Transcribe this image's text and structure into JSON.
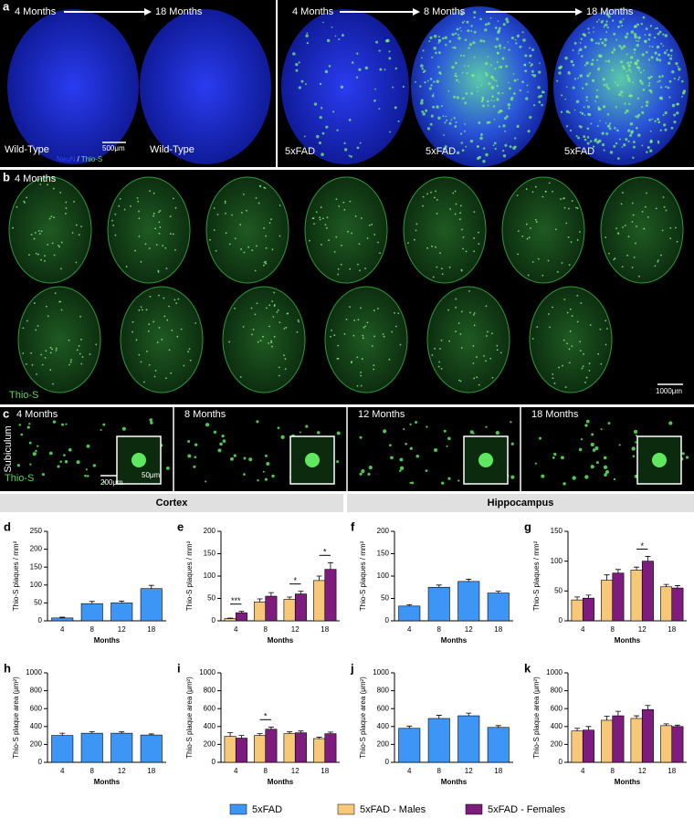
{
  "panels": {
    "a": {
      "label": "a",
      "wt_start": "4 Months",
      "wt_end": "18 Months",
      "wt_left": "Wild-Type",
      "wt_right": "Wild-Type",
      "scale": "500μm",
      "stain1": "NeuN",
      "sep": "/",
      "stain2": "Thio-S",
      "fad_1": "4 Months",
      "fad_2": "8 Months",
      "fad_3": "18 Months",
      "fad_label_1": "5xFAD",
      "fad_label_2": "5xFAD",
      "fad_label_3": "5xFAD"
    },
    "b": {
      "label": "b",
      "age": "4 Months",
      "stain": "Thio-S",
      "scale": "1000μm"
    },
    "c": {
      "label": "c",
      "ages": [
        "4 Months",
        "8 Months",
        "12 Months",
        "18 Months"
      ],
      "region": "Subiculum",
      "stain": "Thio-S",
      "scale": "200μm",
      "inset_scale": "50μm"
    }
  },
  "sections": [
    "Cortex",
    "Hippocampus"
  ],
  "chart_data": [
    {
      "type": "bar",
      "label": "d",
      "ylabel": "Thio-S plaques / mm²",
      "xlabel": "Months",
      "categories": [
        "4",
        "8",
        "12",
        "18"
      ],
      "series": [
        {
          "name": "5xFAD",
          "color": "#3d96f5",
          "values": [
            8,
            48,
            50,
            90
          ],
          "errors": [
            2,
            6,
            5,
            9
          ]
        }
      ],
      "ylim": [
        0,
        250
      ],
      "yticks": [
        0,
        50,
        100,
        150,
        200,
        250
      ],
      "annotations": []
    },
    {
      "type": "bar",
      "label": "e",
      "ylabel": "Thio-S plaques / mm²",
      "xlabel": "Months",
      "categories": [
        "4",
        "8",
        "12",
        "18"
      ],
      "series": [
        {
          "name": "5xFAD - Males",
          "color": "#f7c878",
          "values": [
            5,
            42,
            48,
            90
          ],
          "errors": [
            1,
            7,
            5,
            10
          ]
        },
        {
          "name": "5xFAD - Females",
          "color": "#7d1b7e",
          "values": [
            18,
            55,
            60,
            115
          ],
          "errors": [
            3,
            8,
            6,
            15
          ]
        }
      ],
      "ylim": [
        0,
        200
      ],
      "yticks": [
        0,
        50,
        100,
        150,
        200
      ],
      "annotations": [
        {
          "text": "***",
          "at": "4"
        },
        {
          "text": "*",
          "at": "12"
        },
        {
          "text": "*",
          "at": "18"
        }
      ]
    },
    {
      "type": "bar",
      "label": "f",
      "ylabel": "Thio-S plaques / mm²",
      "xlabel": "Months",
      "categories": [
        "4",
        "8",
        "12",
        "18"
      ],
      "series": [
        {
          "name": "5xFAD",
          "color": "#3d96f5",
          "values": [
            33,
            75,
            88,
            62
          ],
          "errors": [
            3,
            5,
            5,
            4
          ]
        }
      ],
      "ylim": [
        0,
        200
      ],
      "yticks": [
        0,
        50,
        100,
        150,
        200
      ],
      "annotations": []
    },
    {
      "type": "bar",
      "label": "g",
      "ylabel": "Thio-S plaques / mm²",
      "xlabel": "Months",
      "categories": [
        "4",
        "8",
        "12",
        "18"
      ],
      "series": [
        {
          "name": "5xFAD - Males",
          "color": "#f7c878",
          "values": [
            35,
            68,
            85,
            57
          ],
          "errors": [
            5,
            9,
            5,
            4
          ]
        },
        {
          "name": "5xFAD - Females",
          "color": "#7d1b7e",
          "values": [
            38,
            80,
            100,
            55
          ],
          "errors": [
            5,
            6,
            8,
            4
          ]
        }
      ],
      "ylim": [
        0,
        150
      ],
      "yticks": [
        0,
        50,
        100,
        150
      ],
      "annotations": [
        {
          "text": "*",
          "at": "12"
        }
      ]
    },
    {
      "type": "bar",
      "label": "h",
      "ylabel": "Thio-S plaque area (μm²)",
      "xlabel": "Months",
      "categories": [
        "4",
        "8",
        "12",
        "18"
      ],
      "series": [
        {
          "name": "5xFAD",
          "color": "#3d96f5",
          "values": [
            300,
            325,
            325,
            305
          ],
          "errors": [
            25,
            18,
            15,
            12
          ]
        }
      ],
      "ylim": [
        0,
        1000
      ],
      "yticks": [
        0,
        200,
        400,
        600,
        800,
        1000
      ],
      "annotations": []
    },
    {
      "type": "bar",
      "label": "i",
      "ylabel": "Thio-S plaque area (μm²)",
      "xlabel": "Months",
      "categories": [
        "4",
        "8",
        "12",
        "18"
      ],
      "series": [
        {
          "name": "5xFAD - Males",
          "color": "#f7c878",
          "values": [
            290,
            300,
            320,
            265
          ],
          "errors": [
            40,
            20,
            20,
            15
          ]
        },
        {
          "name": "5xFAD - Females",
          "color": "#7d1b7e",
          "values": [
            270,
            370,
            330,
            320
          ],
          "errors": [
            30,
            25,
            20,
            18
          ]
        }
      ],
      "ylim": [
        0,
        1000
      ],
      "yticks": [
        0,
        200,
        400,
        600,
        800,
        1000
      ],
      "annotations": [
        {
          "text": "*",
          "at": "8"
        }
      ]
    },
    {
      "type": "bar",
      "label": "j",
      "ylabel": "Thio-S plaque area (μm²)",
      "xlabel": "Months",
      "categories": [
        "4",
        "8",
        "12",
        "18"
      ],
      "series": [
        {
          "name": "5xFAD",
          "color": "#3d96f5",
          "values": [
            380,
            490,
            520,
            390
          ],
          "errors": [
            25,
            35,
            30,
            20
          ]
        }
      ],
      "ylim": [
        0,
        1000
      ],
      "yticks": [
        0,
        200,
        400,
        600,
        800,
        1000
      ],
      "annotations": []
    },
    {
      "type": "bar",
      "label": "k",
      "ylabel": "Thio-S plaque area (μm²)",
      "xlabel": "Months",
      "categories": [
        "4",
        "8",
        "12",
        "18"
      ],
      "series": [
        {
          "name": "5xFAD - Males",
          "color": "#f7c878",
          "values": [
            350,
            470,
            490,
            410
          ],
          "errors": [
            30,
            45,
            30,
            20
          ]
        },
        {
          "name": "5xFAD - Females",
          "color": "#7d1b7e",
          "values": [
            360,
            520,
            590,
            400
          ],
          "errors": [
            40,
            50,
            45,
            15
          ]
        }
      ],
      "ylim": [
        0,
        1000
      ],
      "yticks": [
        0,
        200,
        400,
        600,
        800,
        1000
      ],
      "annotations": []
    }
  ]
}
